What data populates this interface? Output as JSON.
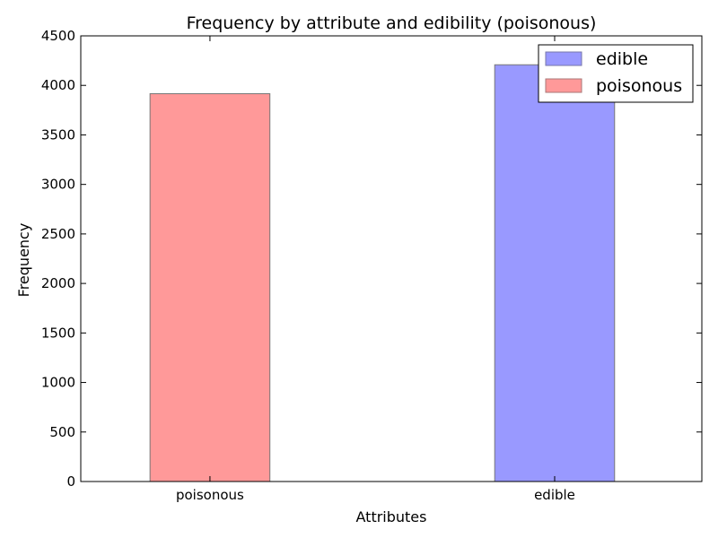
{
  "chart_data": {
    "type": "bar",
    "title": "Frequency by attribute and edibility (poisonous)",
    "xlabel": "Attributes",
    "ylabel": "Frequency",
    "categories": [
      "poisonous",
      "edible"
    ],
    "ylim": [
      0,
      4500
    ],
    "yticks": [
      0,
      500,
      1000,
      1500,
      2000,
      2500,
      3000,
      3500,
      4000,
      4500
    ],
    "grid": false,
    "legend_position": "top-right",
    "series": [
      {
        "name": "edible",
        "color": "#9999ff",
        "values": [
          0,
          4208
        ]
      },
      {
        "name": "poisonous",
        "color": "#ff9999",
        "values": [
          3916,
          0
        ]
      }
    ]
  }
}
